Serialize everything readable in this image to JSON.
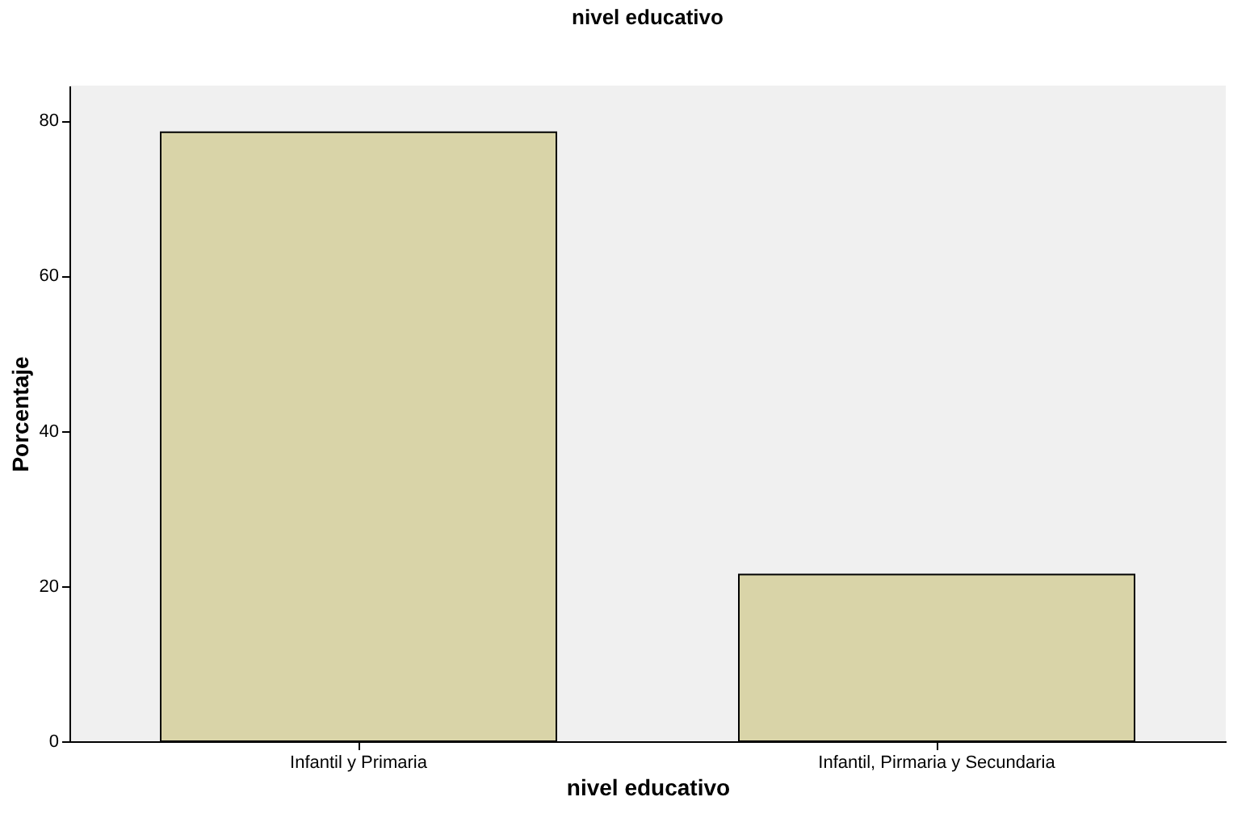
{
  "chart_data": {
    "type": "bar",
    "title": "nivel educativo",
    "xlabel": "nivel educativo",
    "ylabel": "Porcentaje",
    "categories": [
      "Infantil y Primaria",
      "Infantil, Pirmaria y Secundaria"
    ],
    "values": [
      78.5,
      21.5
    ],
    "color": "#d9d4a8",
    "ylim": [
      0,
      84.5
    ],
    "yticks": [
      0,
      20,
      40,
      60,
      80
    ],
    "grid": false
  }
}
